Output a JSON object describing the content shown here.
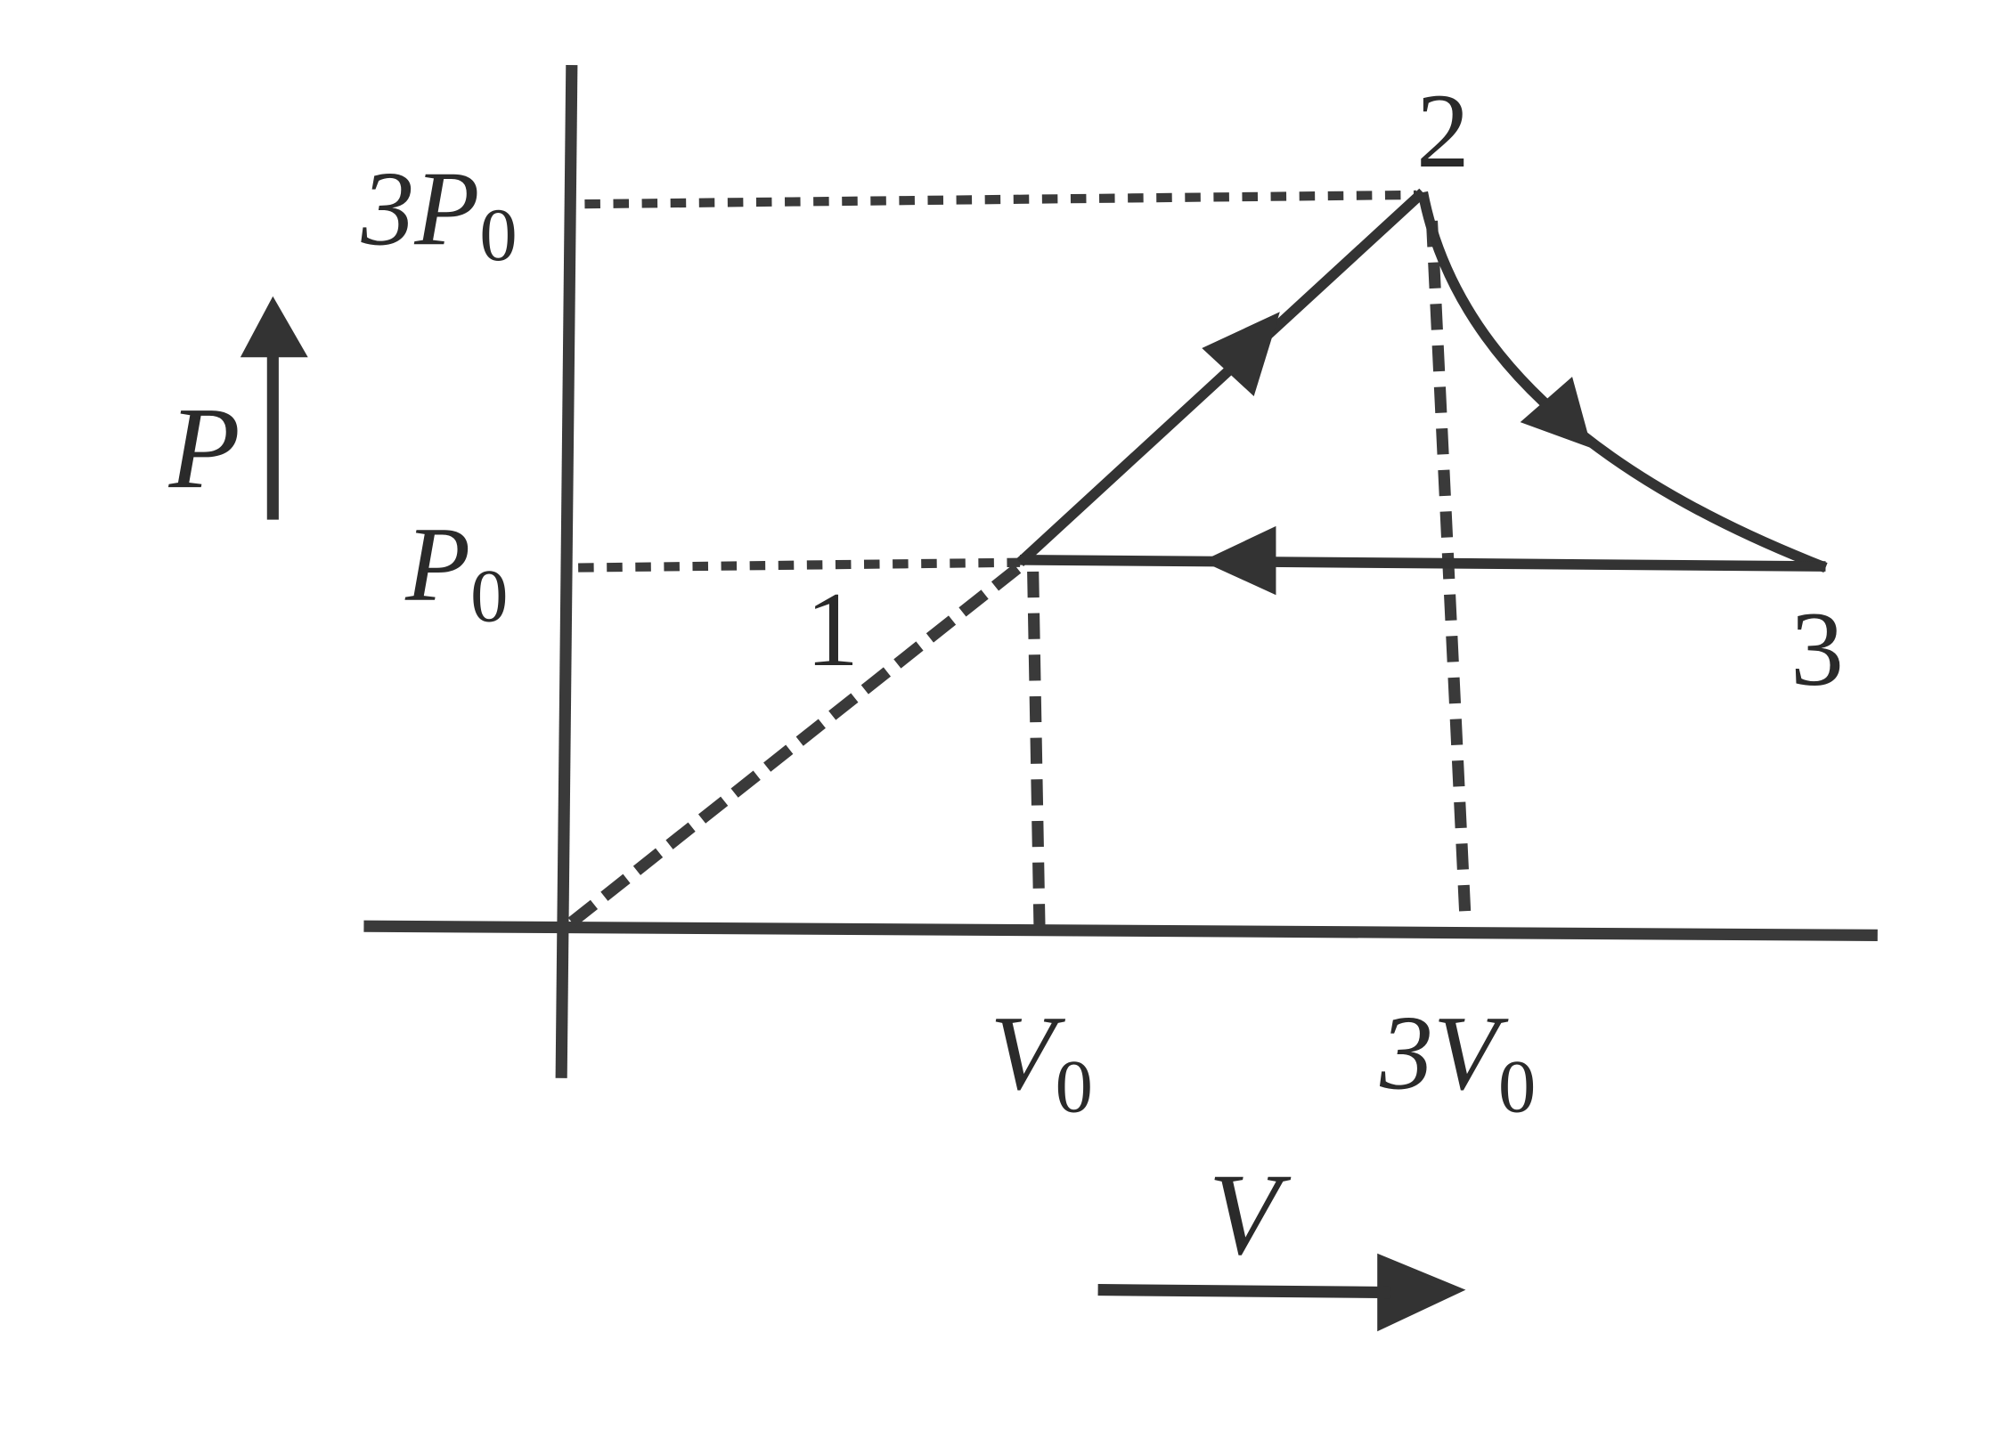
{
  "diagram": {
    "axes": {
      "y_label": "P",
      "x_label": "V"
    },
    "levels": {
      "three_p0": {
        "main": "3P",
        "sub": "0"
      },
      "p0": {
        "main": "P",
        "sub": "0"
      },
      "v0": {
        "main": "V",
        "sub": "0"
      },
      "three_v0": {
        "main": "3V",
        "sub": "0"
      }
    },
    "points": [
      "1",
      "2",
      "3"
    ]
  }
}
